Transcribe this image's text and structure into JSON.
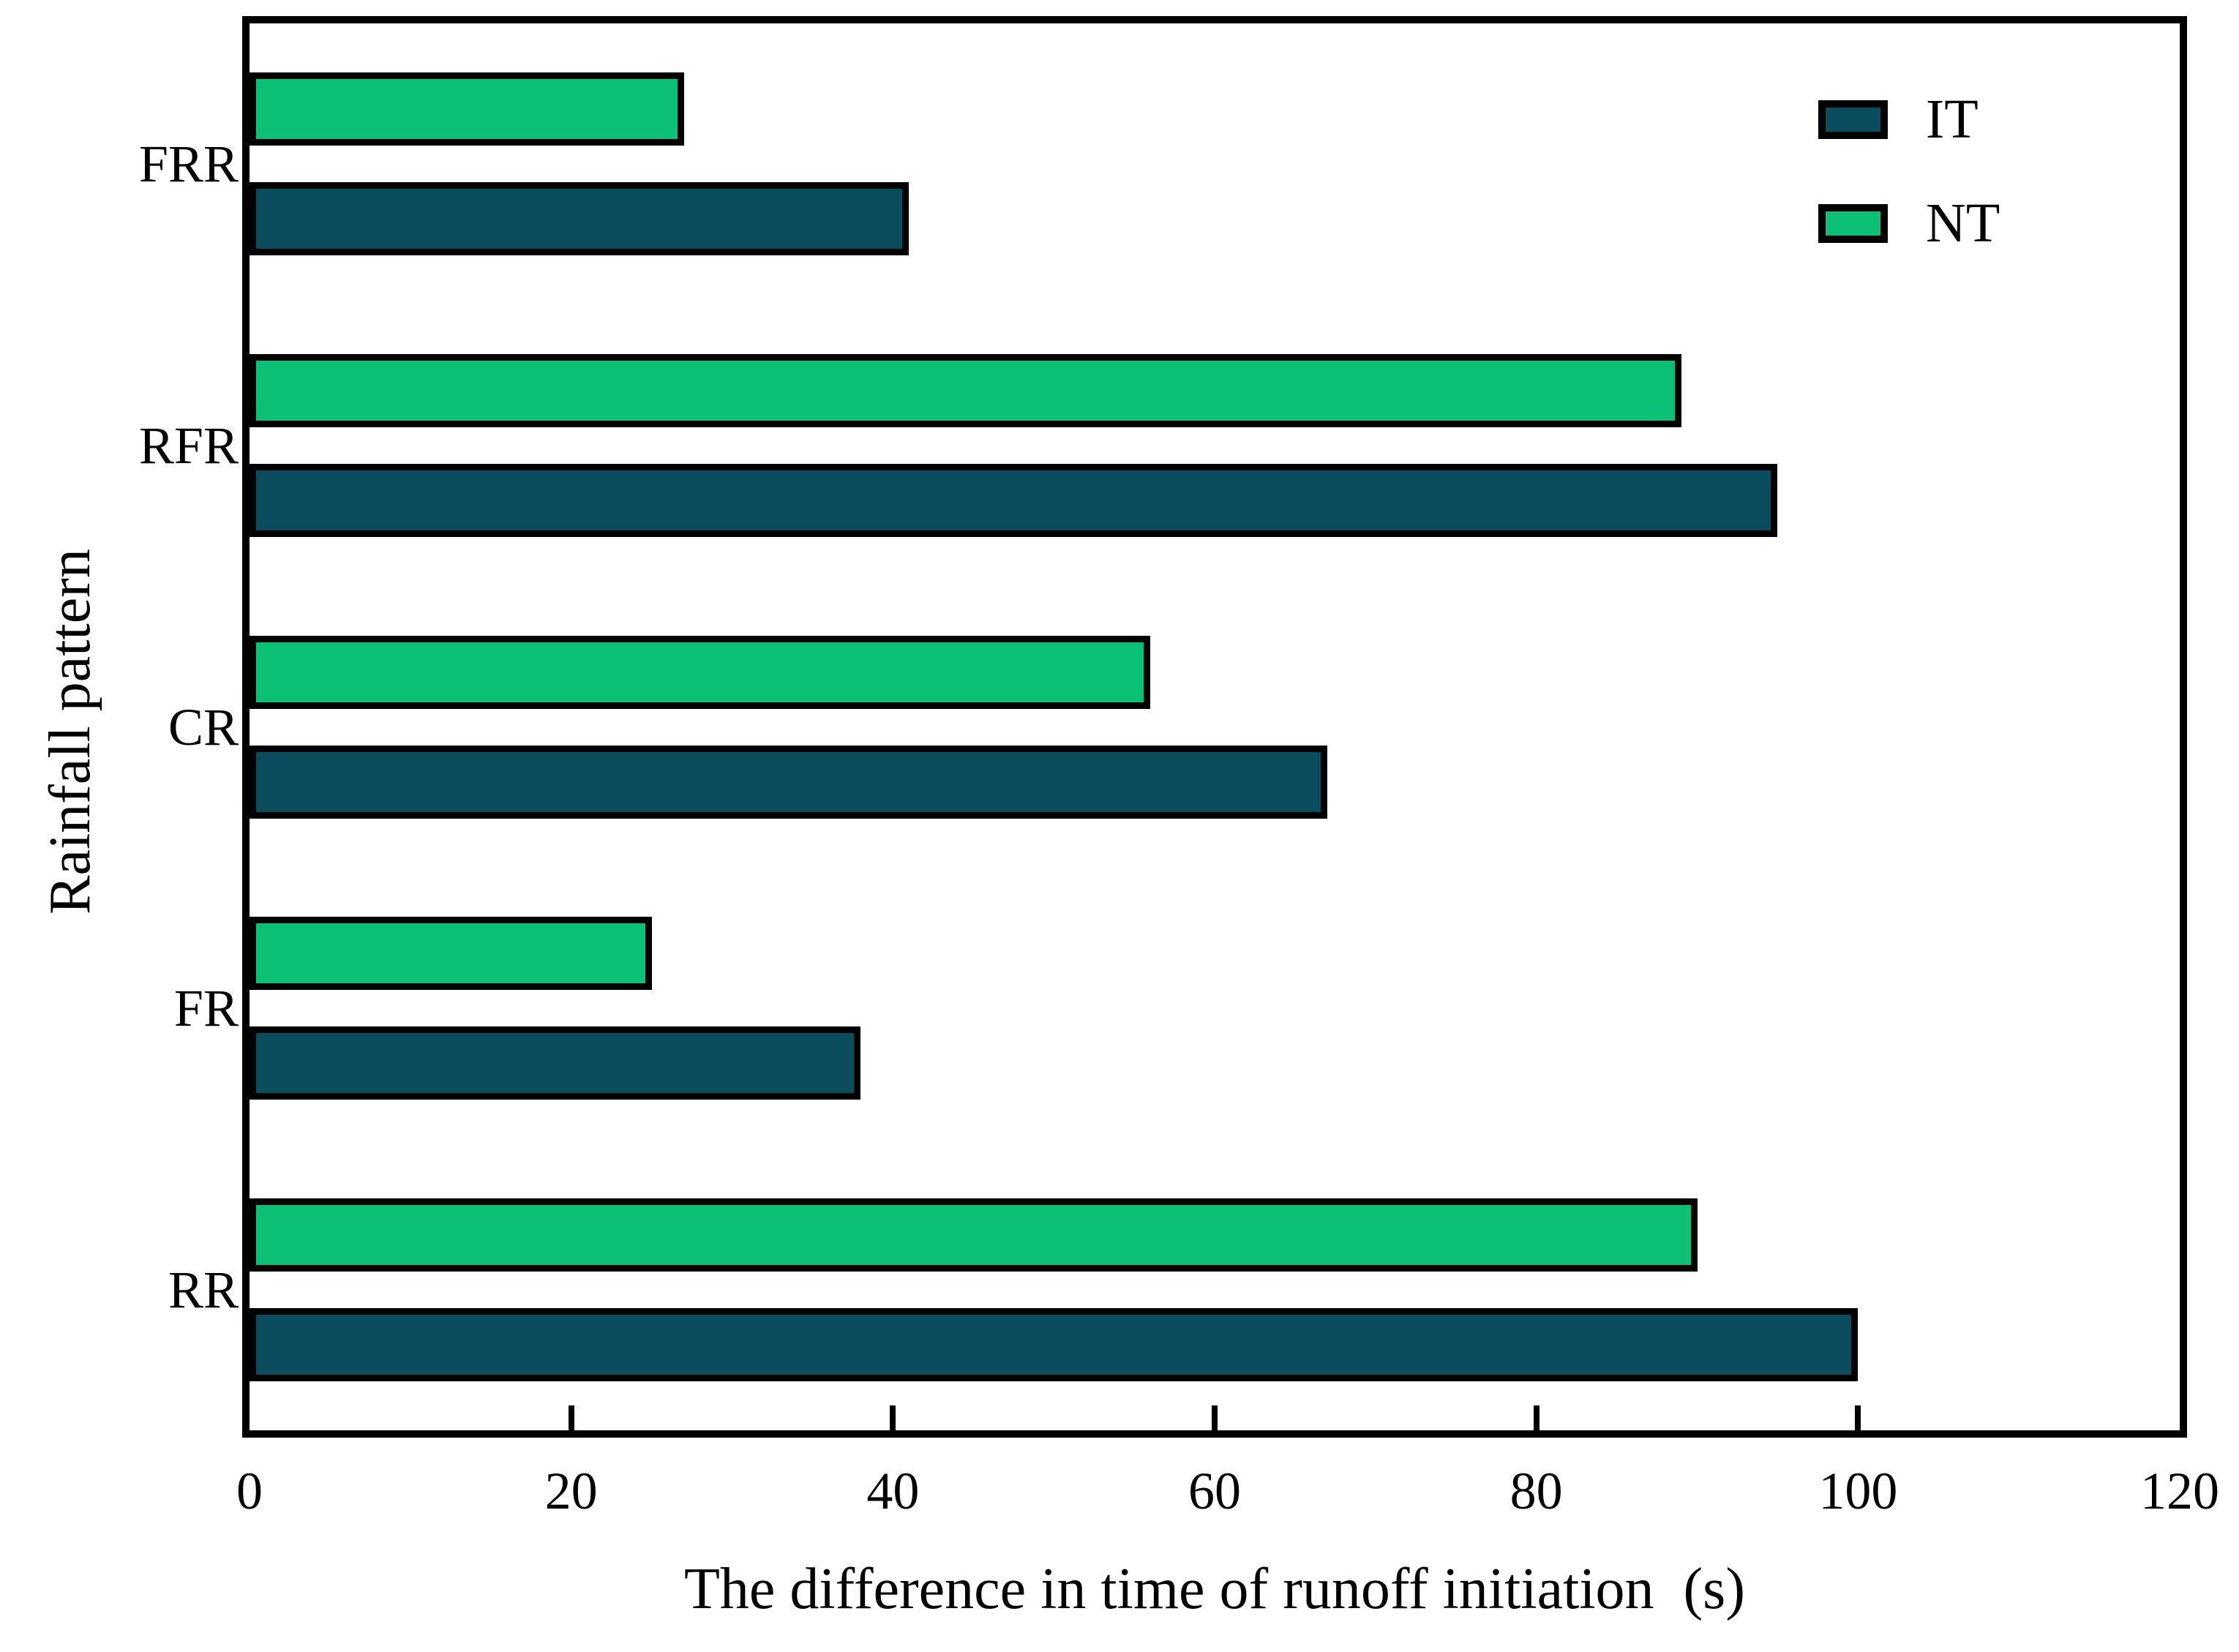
{
  "chart_data": {
    "type": "bar",
    "orientation": "horizontal",
    "title": "",
    "xlabel": "The difference in time of runoff initiation  (s)",
    "ylabel": "Rainfall pattern",
    "categories": [
      "RR",
      "FR",
      "CR",
      "RFR",
      "FRR"
    ],
    "categories_note": "listed bottom-to-top as on the y axis",
    "series": [
      {
        "name": "IT",
        "color": "#0a4d5e",
        "values": [
          100,
          38,
          67,
          95,
          41
        ]
      },
      {
        "name": "NT",
        "color": "#0cc075",
        "values": [
          90,
          25,
          56,
          89,
          27
        ]
      }
    ],
    "xlim": [
      0,
      120
    ],
    "xticks": [
      0,
      20,
      40,
      60,
      80,
      100,
      120
    ],
    "grid": false,
    "legend_position": "upper right",
    "bar_group_order_top_to_bottom": [
      "NT",
      "IT"
    ],
    "bar_edge_color": "#000000",
    "background_color": "#ffffff"
  },
  "legend": {
    "items": [
      {
        "label": "IT",
        "color": "#0a4d5e"
      },
      {
        "label": "NT",
        "color": "#0cc075"
      }
    ]
  },
  "axes": {
    "x_title": "The difference in time of runoff initiation  (s)",
    "y_title": "Rainfall pattern",
    "x_tick_labels": [
      "0",
      "20",
      "40",
      "60",
      "80",
      "100",
      "120"
    ]
  }
}
